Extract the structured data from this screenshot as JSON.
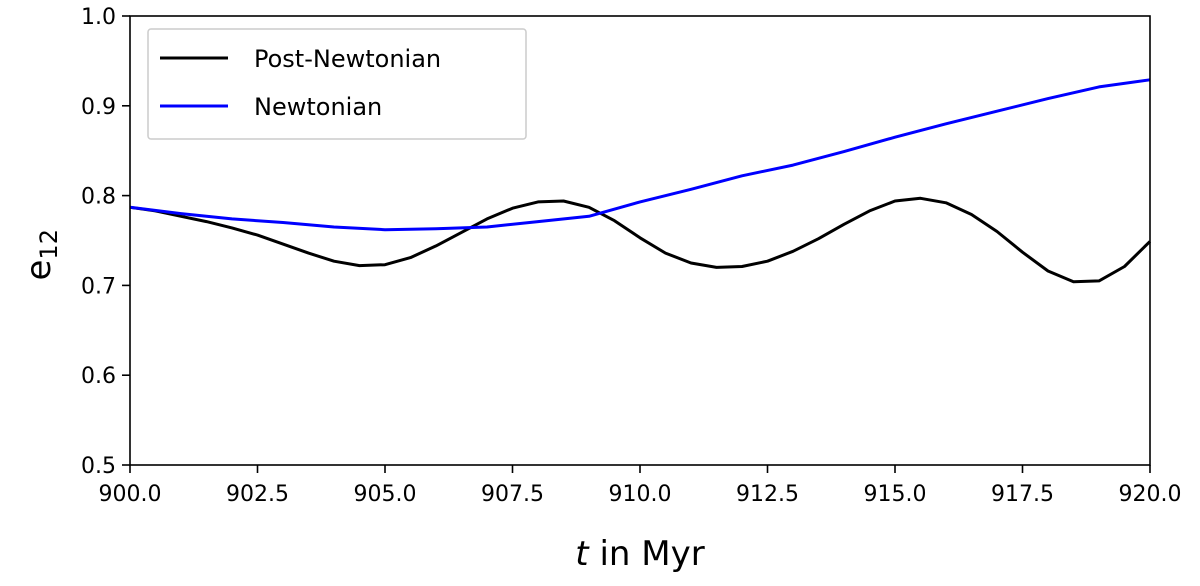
{
  "chart_data": {
    "type": "line",
    "title": "",
    "xlabel_italic": "t",
    "xlabel_rest": " in Myr",
    "ylabel_main": "e",
    "ylabel_sub": "12",
    "xlim": [
      900.0,
      920.0
    ],
    "ylim": [
      0.5,
      1.0
    ],
    "xticks": [
      900.0,
      902.5,
      905.0,
      907.5,
      910.0,
      912.5,
      915.0,
      917.5,
      920.0
    ],
    "xtick_labels": [
      "900.0",
      "902.5",
      "905.0",
      "907.5",
      "910.0",
      "912.5",
      "915.0",
      "917.5",
      "920.0"
    ],
    "yticks": [
      0.5,
      0.6,
      0.7,
      0.8,
      0.9,
      1.0
    ],
    "ytick_labels": [
      "0.5",
      "0.6",
      "0.7",
      "0.8",
      "0.9",
      "1.0"
    ],
    "legend_position": "top-left",
    "series": [
      {
        "name": "Post-Newtonian",
        "color": "#000000",
        "x": [
          900.0,
          900.5,
          901.0,
          901.5,
          902.0,
          902.5,
          903.0,
          903.5,
          904.0,
          904.5,
          905.0,
          905.5,
          906.0,
          906.5,
          907.0,
          907.5,
          908.0,
          908.5,
          909.0,
          909.5,
          910.0,
          910.5,
          911.0,
          911.5,
          912.0,
          912.5,
          913.0,
          913.5,
          914.0,
          914.5,
          915.0,
          915.5,
          916.0,
          916.5,
          917.0,
          917.5,
          918.0,
          918.5,
          919.0,
          919.5,
          920.0
        ],
        "y": [
          0.787,
          0.783,
          0.777,
          0.771,
          0.764,
          0.756,
          0.746,
          0.736,
          0.727,
          0.722,
          0.723,
          0.731,
          0.744,
          0.759,
          0.774,
          0.786,
          0.793,
          0.794,
          0.787,
          0.772,
          0.753,
          0.736,
          0.725,
          0.72,
          0.721,
          0.727,
          0.738,
          0.752,
          0.768,
          0.783,
          0.794,
          0.797,
          0.792,
          0.779,
          0.76,
          0.737,
          0.716,
          0.704,
          0.705,
          0.721,
          0.749
        ]
      },
      {
        "name": "Newtonian",
        "color": "#0000ff",
        "x": [
          900.0,
          901.0,
          902.0,
          903.0,
          904.0,
          905.0,
          906.0,
          907.0,
          908.0,
          909.0,
          910.0,
          911.0,
          912.0,
          913.0,
          914.0,
          915.0,
          916.0,
          917.0,
          918.0,
          919.0,
          920.0
        ],
        "y": [
          0.787,
          0.78,
          0.774,
          0.77,
          0.765,
          0.762,
          0.763,
          0.765,
          0.771,
          0.777,
          0.793,
          0.807,
          0.822,
          0.834,
          0.849,
          0.865,
          0.88,
          0.894,
          0.908,
          0.921,
          0.929
        ]
      }
    ]
  }
}
